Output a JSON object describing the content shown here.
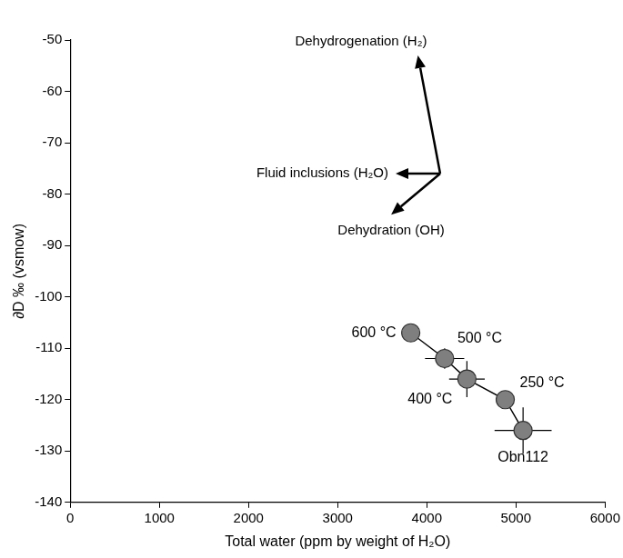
{
  "chart_data": {
    "type": "scatter",
    "x_label": "Total water (ppm by weight of H₂O)",
    "y_label": "∂D ‰ (vsmow)",
    "xlim": [
      0,
      6000
    ],
    "xticks": [
      0,
      1000,
      2000,
      3000,
      4000,
      5000,
      6000
    ],
    "ylim": [
      -140,
      -50
    ],
    "yticks": [
      -140,
      -130,
      -120,
      -110,
      -100,
      -90,
      -80,
      -70,
      -60,
      -50
    ],
    "grid": false,
    "series": [
      {
        "color": "#7f7f7f",
        "marker": "circle",
        "line_style": "solid",
        "x": [
          3820,
          4200,
          4450,
          4880,
          5080
        ],
        "values": [
          -107,
          -112,
          -116,
          -120,
          -126
        ],
        "x_error": [
          0,
          220,
          200,
          0,
          320
        ],
        "y_error": [
          0,
          2,
          3.5,
          0,
          4.5
        ],
        "point_labels": [
          "600 °C",
          "500 °C",
          "400 °C",
          "250 °C",
          "Obn112"
        ]
      }
    ],
    "annotations": [
      {
        "text": "Dehydrogenation (H₂)",
        "from": [
          4150,
          -76
        ],
        "to": [
          3900,
          -53
        ]
      },
      {
        "text": "Fluid inclusions (H₂O)",
        "from": [
          4150,
          -76
        ],
        "to": [
          3650,
          -76
        ]
      },
      {
        "text": "Dehydration (OH)",
        "from": [
          4150,
          -76
        ],
        "to": [
          3600,
          -84
        ]
      }
    ]
  }
}
